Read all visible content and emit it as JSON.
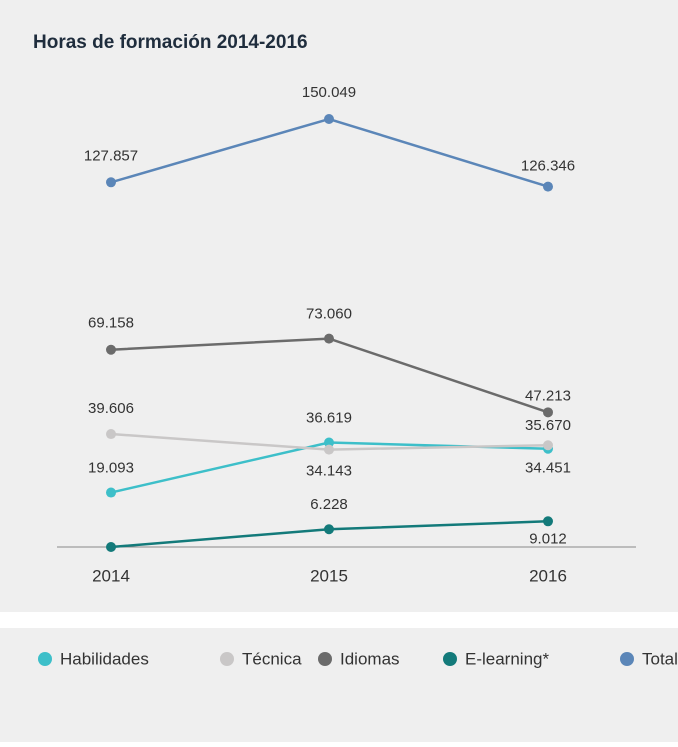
{
  "chart_data": {
    "type": "line",
    "title": "Horas de formación 2014-2016",
    "categories": [
      "2014",
      "2015",
      "2016"
    ],
    "ylim": [
      0,
      150049
    ],
    "series": [
      {
        "name": "Habilidades",
        "color": "#3dbfc9",
        "values": [
          19093,
          36619,
          34451
        ],
        "value_labels": [
          "19.093",
          "36.619",
          "34.451"
        ]
      },
      {
        "name": "Técnica",
        "color": "#c9c7c7",
        "values": [
          39606,
          34143,
          35670
        ],
        "value_labels": [
          "39.606",
          "34.143",
          "35.670"
        ]
      },
      {
        "name": "Idiomas",
        "color": "#6b6b6b",
        "values": [
          69158,
          73060,
          47213
        ],
        "value_labels": [
          "69.158",
          "73.060",
          "47.213"
        ]
      },
      {
        "name": "E-learning*",
        "color": "#137a7a",
        "values": [
          0,
          6228,
          9012
        ],
        "value_labels": [
          null,
          "6.228",
          "9.012"
        ]
      },
      {
        "name": "Total",
        "color": "#5b86b8",
        "values": [
          127857,
          150049,
          126346
        ],
        "value_labels": [
          "127.857",
          "150.049",
          "126.346"
        ]
      }
    ]
  }
}
